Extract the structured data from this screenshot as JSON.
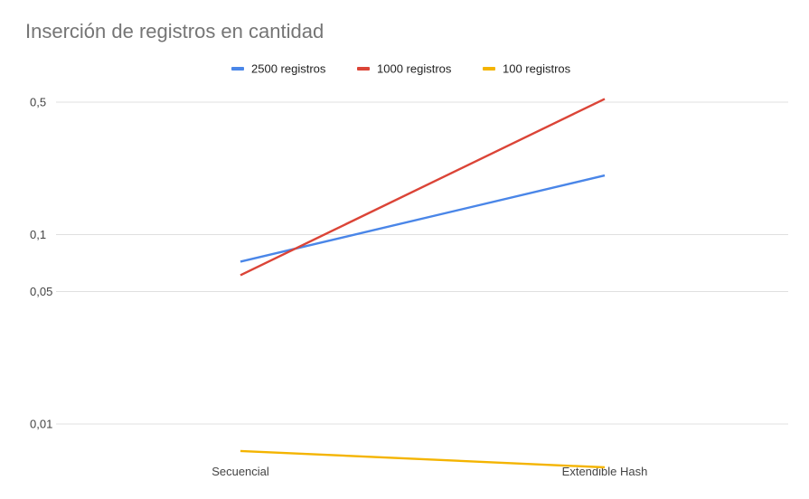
{
  "chart_data": {
    "type": "line",
    "title": "Inserción de registros en cantidad",
    "categories": [
      "Secuencial",
      "Extendible Hash"
    ],
    "y_scale": "log",
    "y_ticks": [
      {
        "value": 0.01,
        "label": "0,01"
      },
      {
        "value": 0.05,
        "label": "0,05"
      },
      {
        "value": 0.1,
        "label": "0,1"
      },
      {
        "value": 0.5,
        "label": "0,5"
      }
    ],
    "ylim": [
      0.005,
      0.55
    ],
    "grid": true,
    "legend_position": "top-center",
    "series": [
      {
        "name": "2500 registros",
        "color": "#4a86e8",
        "values": [
          0.072,
          0.205
        ]
      },
      {
        "name": "1000 registros",
        "color": "#db4437",
        "values": [
          0.061,
          0.52
        ]
      },
      {
        "name": "100 registros",
        "color": "#f4b400",
        "values": [
          0.0072,
          0.0059
        ]
      }
    ]
  }
}
